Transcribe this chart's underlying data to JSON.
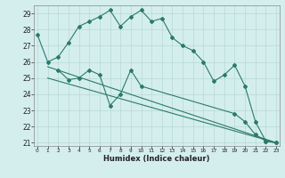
{
  "line1_x": [
    0,
    1,
    2,
    3,
    4,
    5,
    6,
    7,
    8,
    9,
    10,
    11,
    12,
    13,
    14,
    15,
    16,
    17,
    18,
    19,
    20,
    21,
    22,
    23
  ],
  "line1_y": [
    27.7,
    26.0,
    26.3,
    27.2,
    28.2,
    28.5,
    28.8,
    29.2,
    28.2,
    28.8,
    29.2,
    28.5,
    28.7,
    27.5,
    27.0,
    26.7,
    26.0,
    24.8,
    25.2,
    25.8,
    24.5,
    22.3,
    21.1,
    21.0
  ],
  "line2_x": [
    2,
    3,
    4,
    5,
    6,
    7,
    8,
    9,
    10,
    19,
    20,
    21,
    22,
    23
  ],
  "line2_y": [
    25.5,
    24.9,
    25.0,
    25.5,
    25.2,
    23.3,
    24.0,
    25.5,
    24.5,
    22.8,
    22.3,
    21.5,
    21.1,
    21.0
  ],
  "line3_x": [
    1,
    23
  ],
  "line3_y": [
    25.7,
    21.0
  ],
  "line4_x": [
    1,
    23
  ],
  "line4_y": [
    25.0,
    21.0
  ],
  "ylim": [
    20.8,
    29.5
  ],
  "xlim": [
    -0.3,
    23.3
  ],
  "yticks": [
    21,
    22,
    23,
    24,
    25,
    26,
    27,
    28,
    29
  ],
  "xticks": [
    0,
    1,
    2,
    3,
    4,
    5,
    6,
    7,
    8,
    9,
    10,
    11,
    12,
    13,
    14,
    15,
    16,
    17,
    18,
    19,
    20,
    21,
    22,
    23
  ],
  "xlabel": "Humidex (Indice chaleur)",
  "line_color": "#2a7a6a",
  "bg_color": "#d4eeee",
  "grid_color": "#b8d8d8"
}
